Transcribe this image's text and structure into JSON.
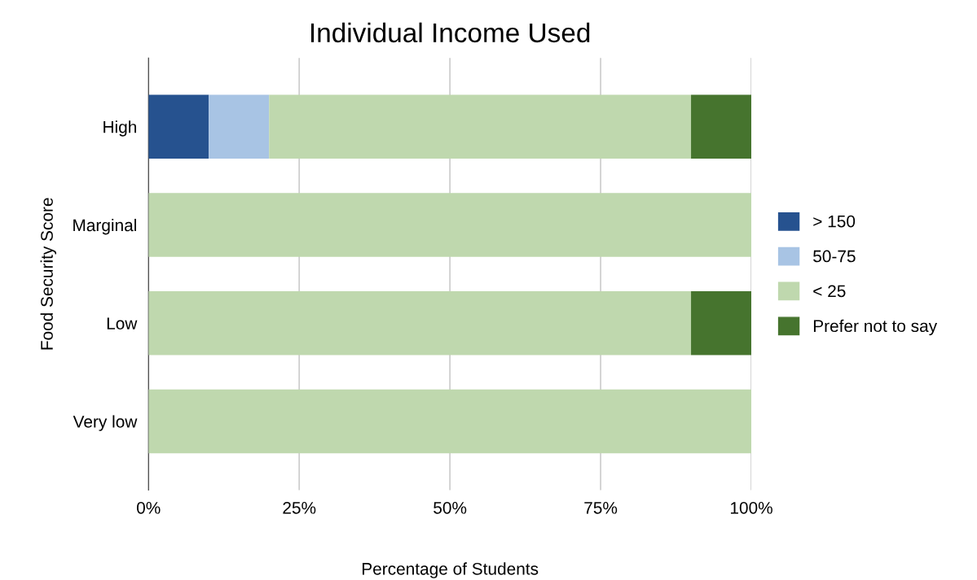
{
  "chart_data": {
    "type": "bar",
    "title": "Individual Income Used",
    "xlabel": "Percentage of Students",
    "ylabel": "Food Security Score",
    "orientation": "horizontal",
    "stacked": true,
    "categories": [
      "High",
      "Marginal",
      "Low",
      "Very low"
    ],
    "series": [
      {
        "name": "> 150",
        "color": "#26528f",
        "values": [
          10,
          0,
          0,
          0
        ]
      },
      {
        "name": "50-75",
        "color": "#a8c4e4",
        "values": [
          10,
          0,
          0,
          0
        ]
      },
      {
        "name": "< 25",
        "color": "#bfd8ae",
        "values": [
          70,
          100,
          90,
          100
        ]
      },
      {
        "name": "Prefer not to say",
        "color": "#46742e",
        "values": [
          10,
          0,
          10,
          0
        ]
      }
    ],
    "xlim": [
      0,
      100
    ],
    "xticks": [
      {
        "value": 0,
        "label": "0%"
      },
      {
        "value": 25,
        "label": "25%"
      },
      {
        "value": 50,
        "label": "50%"
      },
      {
        "value": 75,
        "label": "75%"
      },
      {
        "value": 100,
        "label": "100%"
      }
    ],
    "grid": "x",
    "legend": "right"
  }
}
